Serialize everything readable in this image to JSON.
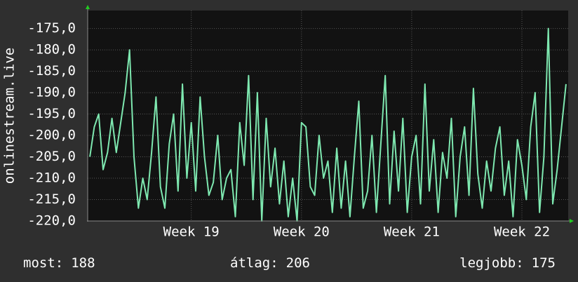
{
  "chart_data": {
    "type": "line",
    "y_label": "onlinestream.live",
    "ylim": [
      -220,
      -170.8
    ],
    "yticks": [
      {
        "value": -175,
        "label": "-175,0"
      },
      {
        "value": -180,
        "label": "-180,0"
      },
      {
        "value": -185,
        "label": "-185,0"
      },
      {
        "value": -190,
        "label": "-190,0"
      },
      {
        "value": -195,
        "label": "-195,0"
      },
      {
        "value": -200,
        "label": "-200,0"
      },
      {
        "value": -205,
        "label": "-205,0"
      },
      {
        "value": -210,
        "label": "-210,0"
      },
      {
        "value": -215,
        "label": "-215,0"
      },
      {
        "value": -220,
        "label": "-220,0"
      }
    ],
    "xlim": [
      18.06,
      22.42
    ],
    "xticks": [
      {
        "value": 19,
        "label": "Week 19"
      },
      {
        "value": 20,
        "label": "Week 20"
      },
      {
        "value": 21,
        "label": "Week 21"
      },
      {
        "value": 22,
        "label": "Week 22"
      }
    ],
    "grid": true,
    "color": "#7ee8b0",
    "values": [
      -205,
      -198,
      -195,
      -208,
      -204,
      -196,
      -204,
      -197,
      -190,
      -180,
      -205,
      -217,
      -210,
      -215,
      -204,
      -191,
      -212,
      -217,
      -202,
      -195,
      -213,
      -188,
      -210,
      -197,
      -213,
      -191,
      -205,
      -214,
      -211,
      -200,
      -215,
      -210,
      -208,
      -219,
      -197,
      -207,
      -186,
      -215,
      -190,
      -220,
      -196,
      -212,
      -203,
      -216,
      -206,
      -219,
      -210,
      -220,
      -197,
      -198,
      -212,
      -214,
      -200,
      -210,
      -206,
      -218,
      -203,
      -217,
      -206,
      -219,
      -205,
      -192,
      -217,
      -213,
      -200,
      -218,
      -202,
      -186,
      -216,
      -199,
      -213,
      -196,
      -218,
      -205,
      -200,
      -216,
      -188,
      -213,
      -201,
      -218,
      -204,
      -210,
      -196,
      -219,
      -205,
      -198,
      -214,
      -189,
      -209,
      -217,
      -206,
      -213,
      -203,
      -198,
      -214,
      -206,
      -219,
      -201,
      -207,
      -215,
      -198,
      -190,
      -218,
      -205,
      -175,
      -216,
      -208,
      -198,
      -188
    ],
    "stats": [
      {
        "label": "most:",
        "value": 188
      },
      {
        "label": "átlag:",
        "value": 206
      },
      {
        "label": "legjobb:",
        "value": 175
      }
    ]
  }
}
